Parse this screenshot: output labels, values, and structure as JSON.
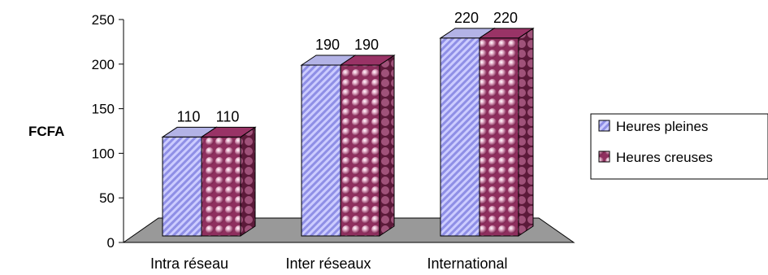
{
  "chart_data": {
    "type": "bar",
    "title": "",
    "xlabel": "",
    "ylabel": "FCFA",
    "ylim": [
      0,
      250
    ],
    "yticks": [
      0,
      50,
      100,
      150,
      200,
      250
    ],
    "categories": [
      "Intra réseau",
      "Inter réseaux",
      "International"
    ],
    "series": [
      {
        "name": "Heures pleines",
        "values": [
          110,
          190,
          220
        ],
        "color": "#9999ff",
        "pattern": "diagonal-stripes"
      },
      {
        "name": "Heures creuses",
        "values": [
          110,
          190,
          220
        ],
        "color": "#993366",
        "pattern": "spheres"
      }
    ],
    "data_labels": true,
    "legend_position": "right",
    "grid": false,
    "style": "3d-clustered-column"
  }
}
